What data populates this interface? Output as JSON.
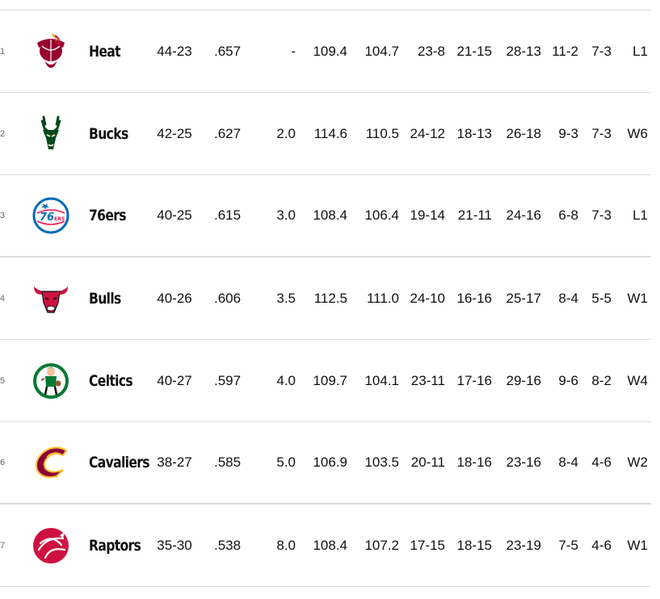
{
  "standings": {
    "rows": [
      {
        "rank": "1",
        "team": "Heat",
        "logo": "heat-logo-icon",
        "record": "44-23",
        "pct": ".657",
        "gb": "-",
        "ppg": "109.4",
        "opp_ppg": "104.7",
        "home": "23-8",
        "away": "21-15",
        "conf": "28-13",
        "div": "11-2",
        "l10": "7-3",
        "streak": "L1"
      },
      {
        "rank": "2",
        "team": "Bucks",
        "logo": "bucks-logo-icon",
        "record": "42-25",
        "pct": ".627",
        "gb": "2.0",
        "ppg": "114.6",
        "opp_ppg": "110.5",
        "home": "24-12",
        "away": "18-13",
        "conf": "26-18",
        "div": "9-3",
        "l10": "7-3",
        "streak": "W6"
      },
      {
        "rank": "3",
        "team": "76ers",
        "logo": "76ers-logo-icon",
        "record": "40-25",
        "pct": ".615",
        "gb": "3.0",
        "ppg": "108.4",
        "opp_ppg": "106.4",
        "home": "19-14",
        "away": "21-11",
        "conf": "24-16",
        "div": "6-8",
        "l10": "7-3",
        "streak": "L1"
      },
      {
        "rank": "4",
        "team": "Bulls",
        "logo": "bulls-logo-icon",
        "record": "40-26",
        "pct": ".606",
        "gb": "3.5",
        "ppg": "112.5",
        "opp_ppg": "111.0",
        "home": "24-10",
        "away": "16-16",
        "conf": "25-17",
        "div": "8-4",
        "l10": "5-5",
        "streak": "W1"
      },
      {
        "rank": "5",
        "team": "Celtics",
        "logo": "celtics-logo-icon",
        "record": "40-27",
        "pct": ".597",
        "gb": "4.0",
        "ppg": "109.7",
        "opp_ppg": "104.1",
        "home": "23-11",
        "away": "17-16",
        "conf": "29-16",
        "div": "9-6",
        "l10": "8-2",
        "streak": "W4"
      },
      {
        "rank": "6",
        "team": "Cavaliers",
        "logo": "cavaliers-logo-icon",
        "record": "38-27",
        "pct": ".585",
        "gb": "5.0",
        "ppg": "106.9",
        "opp_ppg": "103.5",
        "home": "20-11",
        "away": "18-16",
        "conf": "23-16",
        "div": "8-4",
        "l10": "4-6",
        "streak": "W2"
      },
      {
        "rank": "7",
        "team": "Raptors",
        "logo": "raptors-logo-icon",
        "record": "35-30",
        "pct": ".538",
        "gb": "8.0",
        "ppg": "108.4",
        "opp_ppg": "107.2",
        "home": "17-15",
        "away": "18-15",
        "conf": "23-19",
        "div": "7-5",
        "l10": "4-6",
        "streak": "W1"
      }
    ]
  },
  "colors": {
    "heat": "#98002e",
    "bucks": "#00471b",
    "sixers": "#006bb6",
    "bulls": "#ce1141",
    "celtics": "#007a33",
    "cavaliers": "#860038",
    "raptors": "#ce1141",
    "divider": "#dcdcdc"
  }
}
